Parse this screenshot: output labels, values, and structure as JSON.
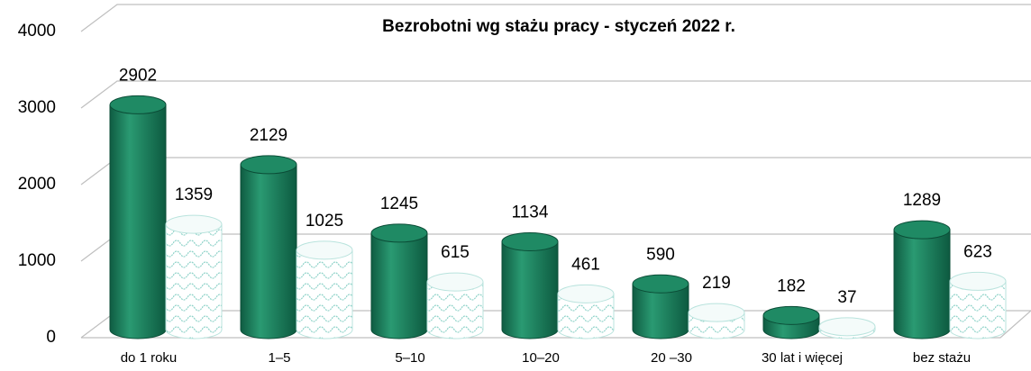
{
  "chart_data": {
    "type": "bar",
    "title": "Bezrobotni wg stażu pracy  - styczeń 2022 r.",
    "categories": [
      "do 1 roku",
      "1–5",
      "5–10",
      "10–20",
      "20 –30",
      "30 lat i więcej",
      "bez stażu"
    ],
    "series": [
      {
        "color": "#1b7d5c",
        "values": [
          2902,
          2129,
          1245,
          1134,
          590,
          182,
          1289
        ]
      },
      {
        "color": "#e6f7f5",
        "values": [
          1359,
          1025,
          615,
          461,
          219,
          37,
          623
        ]
      }
    ],
    "ylim": [
      0,
      4000
    ],
    "yticks": [
      0,
      1000,
      2000,
      3000,
      4000
    ],
    "grid": true
  }
}
